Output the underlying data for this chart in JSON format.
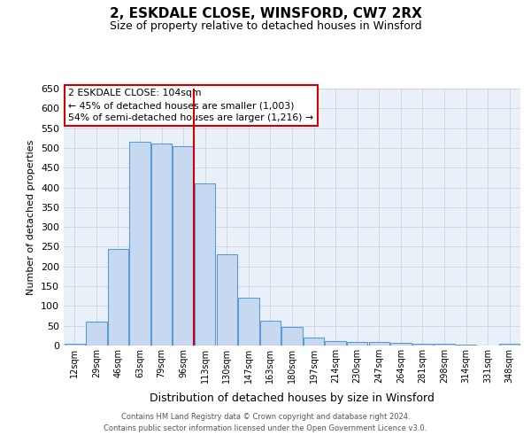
{
  "title1": "2, ESKDALE CLOSE, WINSFORD, CW7 2RX",
  "title2": "Size of property relative to detached houses in Winsford",
  "xlabel": "Distribution of detached houses by size in Winsford",
  "ylabel": "Number of detached properties",
  "categories": [
    "12sqm",
    "29sqm",
    "46sqm",
    "63sqm",
    "79sqm",
    "96sqm",
    "113sqm",
    "130sqm",
    "147sqm",
    "163sqm",
    "180sqm",
    "197sqm",
    "214sqm",
    "230sqm",
    "247sqm",
    "264sqm",
    "281sqm",
    "298sqm",
    "314sqm",
    "331sqm",
    "348sqm"
  ],
  "values": [
    5,
    60,
    245,
    515,
    510,
    505,
    410,
    230,
    120,
    63,
    47,
    20,
    12,
    8,
    8,
    7,
    5,
    5,
    3,
    0,
    5
  ],
  "bar_color": "#c6d9f0",
  "bar_edge_color": "#5b9bd5",
  "red_line_x": 5.5,
  "annotation_text": "2 ESKDALE CLOSE: 104sqm\n← 45% of detached houses are smaller (1,003)\n54% of semi-detached houses are larger (1,216) →",
  "annotation_box_color": "#ffffff",
  "annotation_box_edge": "#cc0000",
  "red_line_color": "#cc0000",
  "grid_color": "#d0d8e8",
  "bg_color": "#eaf0f8",
  "ylim": [
    0,
    650
  ],
  "yticks": [
    0,
    50,
    100,
    150,
    200,
    250,
    300,
    350,
    400,
    450,
    500,
    550,
    600,
    650
  ],
  "footer1": "Contains HM Land Registry data © Crown copyright and database right 2024.",
  "footer2": "Contains public sector information licensed under the Open Government Licence v3.0."
}
